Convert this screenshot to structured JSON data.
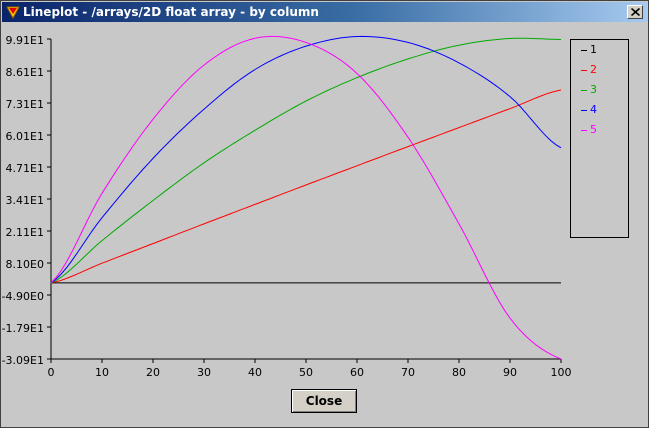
{
  "window": {
    "title": "Lineplot - /arrays/2D float array - by column"
  },
  "close_button_label": "Close",
  "colors": {
    "titlebar_start": "#0a246a",
    "titlebar_end": "#a6caf0",
    "background": "#c8c8c8"
  },
  "chart_data": {
    "type": "line",
    "title": "",
    "xlabel": "",
    "ylabel": "",
    "xlim": [
      0,
      100
    ],
    "ylim": [
      -30.9,
      99.1
    ],
    "x_ticks": [
      0,
      10,
      20,
      30,
      40,
      50,
      60,
      70,
      80,
      90,
      100
    ],
    "x_tick_labels": [
      "0",
      "10",
      "20",
      "30",
      "40",
      "50",
      "60",
      "70",
      "80",
      "90",
      "100"
    ],
    "y_ticks": [
      99.1,
      86.1,
      73.1,
      60.1,
      47.1,
      34.1,
      21.1,
      8.1,
      -4.9,
      -17.9,
      -30.9
    ],
    "y_tick_labels": [
      "9.91E1",
      "8.61E1",
      "7.31E1",
      "6.01E1",
      "4.71E1",
      "3.41E1",
      "2.11E1",
      "8.10E0",
      "-4.90E0",
      "-1.79E1",
      "-3.09E1"
    ],
    "grid": false,
    "legend_position": "right",
    "x": [
      0,
      10,
      20,
      30,
      40,
      50,
      60,
      70,
      80,
      90,
      100
    ],
    "series": [
      {
        "name": "1",
        "color": "#000000",
        "values": [
          0,
          0,
          0,
          0,
          0,
          0,
          0,
          0,
          0,
          0,
          0
        ]
      },
      {
        "name": "2",
        "color": "#ff0000",
        "values": [
          0,
          8.0,
          16.0,
          24.0,
          31.9,
          39.8,
          47.6,
          55.4,
          63.1,
          70.8,
          78.4
        ]
      },
      {
        "name": "3",
        "color": "#00aa00",
        "values": [
          0,
          17.2,
          33.5,
          48.8,
          62.0,
          73.9,
          83.4,
          91.0,
          96.6,
          99.3,
          98.9
        ]
      },
      {
        "name": "4",
        "color": "#0000ff",
        "values": [
          0,
          26.5,
          50.6,
          70.6,
          86.7,
          96.2,
          100.1,
          97.7,
          89.4,
          75.7,
          54.9
        ]
      },
      {
        "name": "5",
        "color": "#ff00ff",
        "values": [
          0,
          36.4,
          66.5,
          88.5,
          99.4,
          97.7,
          85.1,
          59.2,
          24.0,
          -14.3,
          -30.9
        ]
      }
    ]
  }
}
